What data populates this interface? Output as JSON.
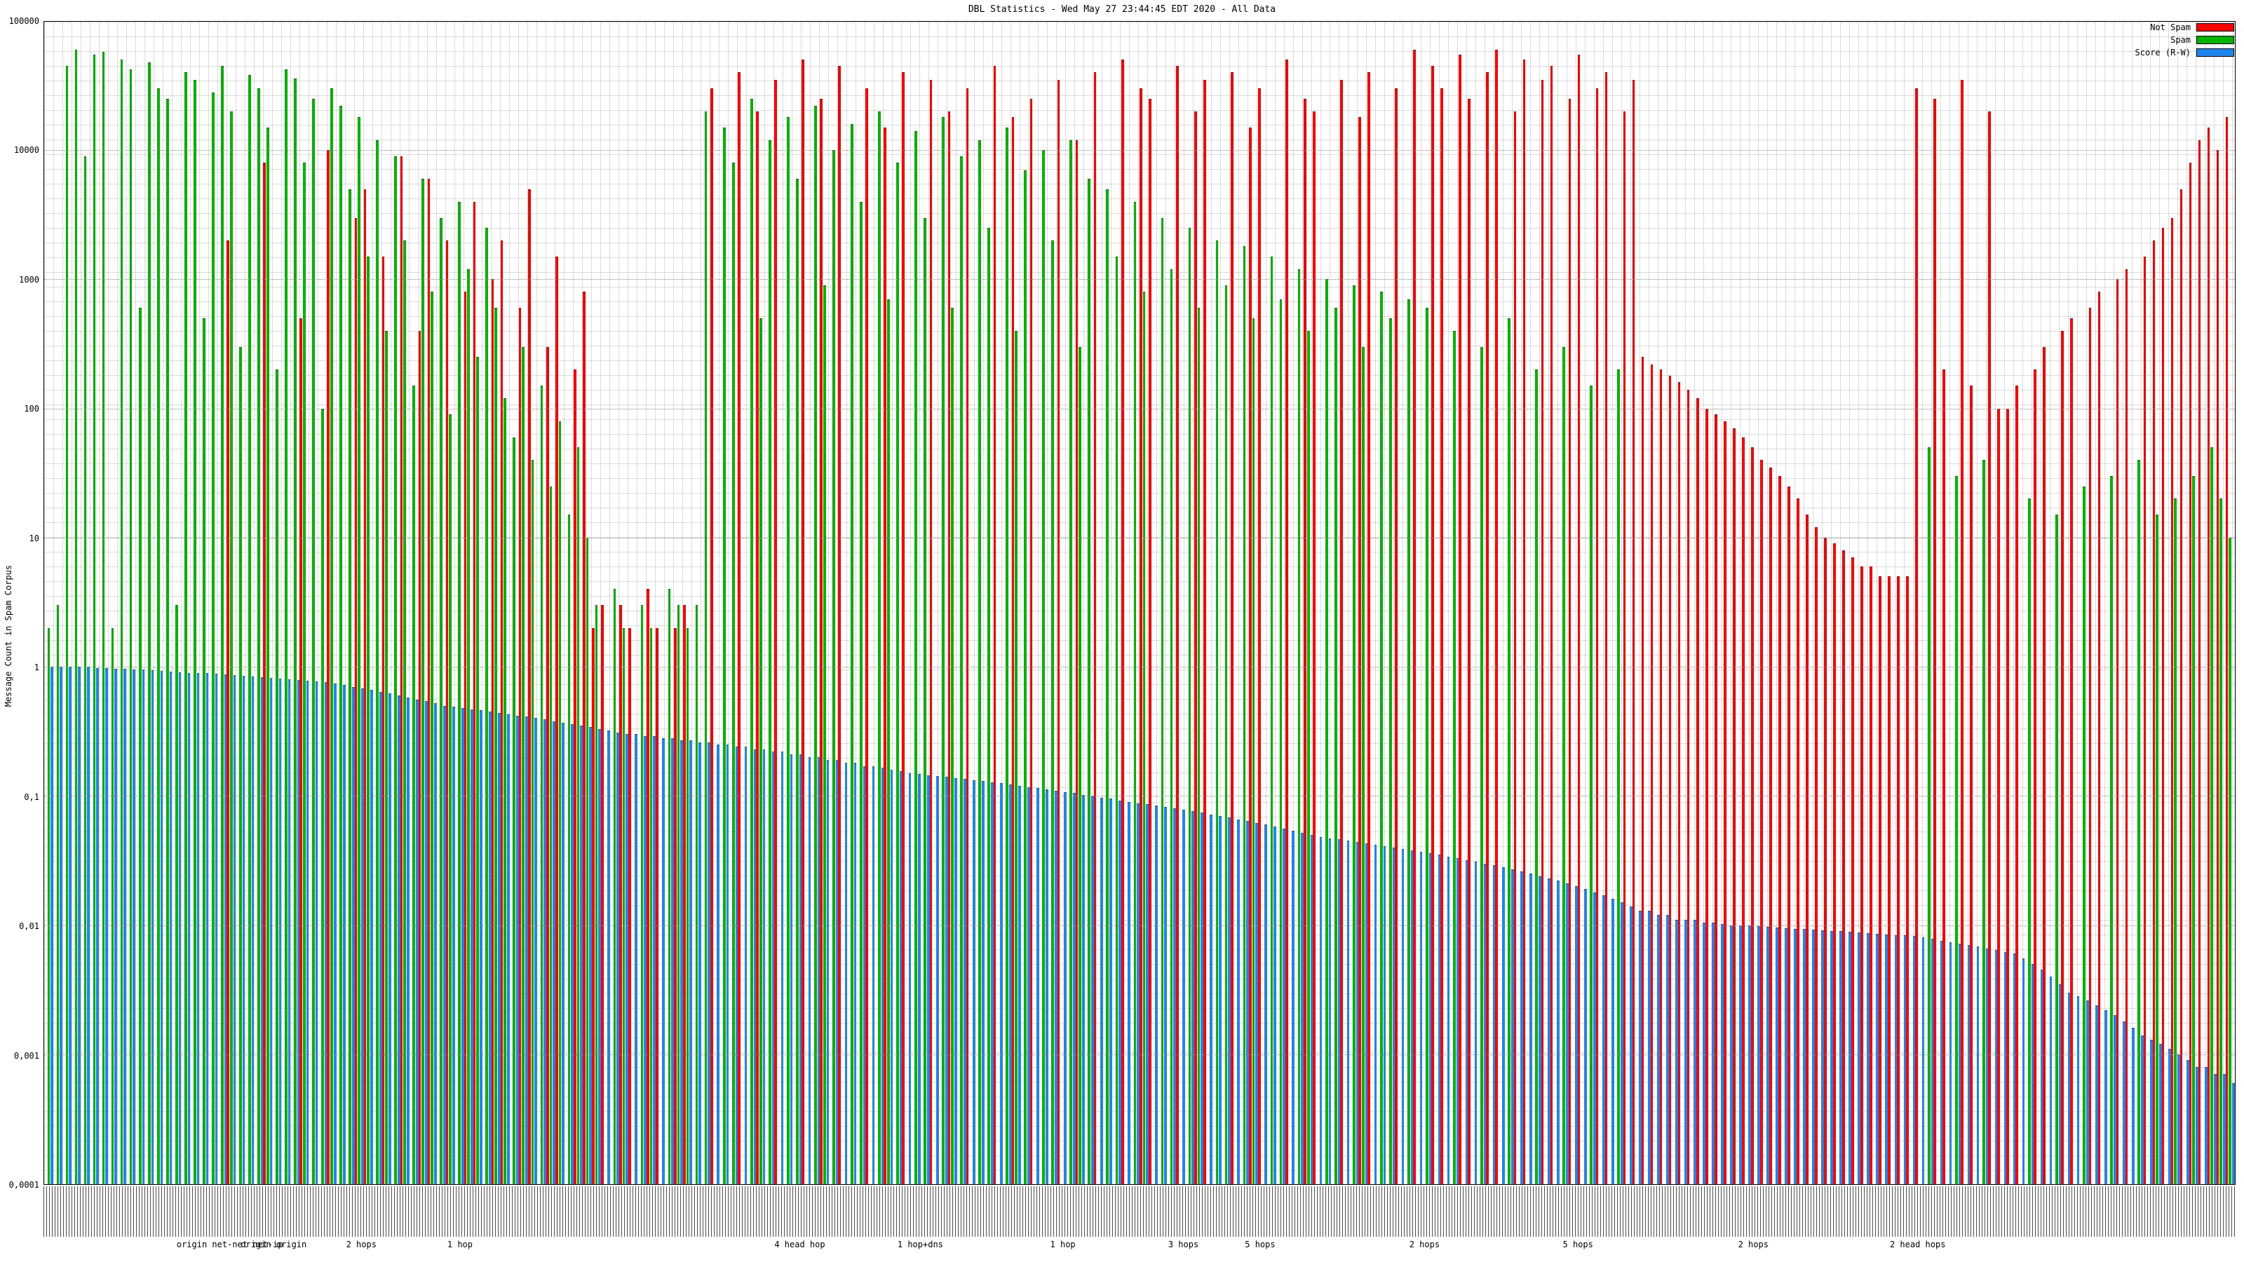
{
  "title": "DBL Statistics - Wed May 27 23:44:45 EDT 2020 - All Data",
  "ylabel": "Message Count in Spam Corpus",
  "chart_data": {
    "type": "bar",
    "y_scale": "log",
    "ylim": [
      0.0001,
      100000
    ],
    "grid": true,
    "legend_position": "top-right",
    "n_categories": 240,
    "x_axis": {
      "labels_illegible": true
    },
    "yticks": [
      {
        "v": 100000,
        "label": "100000"
      },
      {
        "v": 10000,
        "label": "10000"
      },
      {
        "v": 1000,
        "label": "1000"
      },
      {
        "v": 100,
        "label": "100"
      },
      {
        "v": 10,
        "label": "10"
      },
      {
        "v": 1,
        "label": "1"
      },
      {
        "v": 0.1,
        "label": "0,1"
      },
      {
        "v": 0.01,
        "label": "0,01"
      },
      {
        "v": 0.001,
        "label": "0,001"
      },
      {
        "v": 0.0001,
        "label": "0,0001"
      }
    ],
    "x_group_labels": [
      {
        "pos": 0.085,
        "text": "origin  net-net  net-ip"
      },
      {
        "pos": 0.105,
        "text": "origin origin"
      },
      {
        "pos": 0.145,
        "text": "2 hops"
      },
      {
        "pos": 0.19,
        "text": "1 hop"
      },
      {
        "pos": 0.345,
        "text": "4 head hop"
      },
      {
        "pos": 0.4,
        "text": "1 hop+dns"
      },
      {
        "pos": 0.465,
        "text": "1 hop"
      },
      {
        "pos": 0.52,
        "text": "3 hops"
      },
      {
        "pos": 0.555,
        "text": "5 hops"
      },
      {
        "pos": 0.63,
        "text": "2 hops"
      },
      {
        "pos": 0.7,
        "text": "5 hops"
      },
      {
        "pos": 0.78,
        "text": "2 hops"
      },
      {
        "pos": 0.855,
        "text": "2 head hops"
      }
    ],
    "series": [
      {
        "name": "Not Spam",
        "color": "#ff0000",
        "values": [
          0,
          0,
          0,
          0,
          0,
          0,
          0,
          0,
          0,
          0,
          0,
          0,
          0,
          0,
          0,
          0,
          0,
          0,
          0,
          0,
          2000,
          0,
          0,
          0,
          8000,
          0,
          0,
          0,
          500,
          0,
          0,
          10000,
          0,
          0,
          3000,
          5000,
          0,
          1500,
          0,
          9000,
          0,
          400,
          6000,
          0,
          2000,
          0,
          800,
          4000,
          0,
          1000,
          2000,
          0,
          600,
          5000,
          0,
          300,
          1500,
          0,
          200,
          800,
          2,
          3,
          0,
          3,
          2,
          0,
          4,
          2,
          0,
          2,
          3,
          0,
          0,
          30000,
          0,
          0,
          40000,
          0,
          20000,
          0,
          35000,
          0,
          0,
          50000,
          0,
          25000,
          0,
          45000,
          0,
          0,
          30000,
          0,
          15000,
          0,
          40000,
          0,
          0,
          35000,
          0,
          20000,
          0,
          30000,
          0,
          0,
          45000,
          0,
          18000,
          0,
          25000,
          0,
          0,
          35000,
          0,
          12000,
          0,
          40000,
          0,
          0,
          50000,
          0,
          30000,
          25000,
          0,
          0,
          45000,
          0,
          20000,
          35000,
          0,
          0,
          40000,
          0,
          15000,
          30000,
          0,
          0,
          50000,
          0,
          25000,
          20000,
          0,
          0,
          35000,
          0,
          18000,
          40000,
          0,
          0,
          30000,
          0,
          60000,
          0,
          45000,
          30000,
          0,
          55000,
          25000,
          0,
          40000,
          60000,
          0,
          20000,
          50000,
          0,
          35000,
          45000,
          0,
          25000,
          55000,
          0,
          30000,
          40000,
          0,
          20000,
          35000,
          250,
          220,
          200,
          180,
          160,
          140,
          120,
          100,
          90,
          80,
          70,
          60,
          50,
          40,
          35,
          30,
          25,
          20,
          15,
          12,
          10,
          9,
          8,
          7,
          6,
          6,
          5,
          5,
          5,
          5,
          30000,
          0,
          25000,
          200,
          0,
          35000,
          150,
          0,
          20000,
          100,
          100,
          150,
          0,
          200,
          300,
          0,
          400,
          500,
          0,
          600,
          800,
          0,
          1000,
          1200,
          0,
          1500,
          2000,
          2500,
          3000,
          5000,
          8000,
          12000,
          15000,
          10000,
          18000
        ]
      },
      {
        "name": "Spam",
        "color": "#00b400",
        "values": [
          2,
          3,
          45000,
          60000,
          9000,
          55000,
          58000,
          2,
          50000,
          42000,
          600,
          48000,
          30000,
          25000,
          3,
          40000,
          35000,
          500,
          28000,
          45000,
          20000,
          300,
          38000,
          30000,
          15000,
          200,
          42000,
          36000,
          8000,
          25000,
          100,
          30000,
          22000,
          5000,
          18000,
          1500,
          12000,
          400,
          9000,
          2000,
          150,
          6000,
          800,
          3000,
          90,
          4000,
          1200,
          250,
          2500,
          600,
          120,
          60,
          300,
          40,
          150,
          25,
          80,
          15,
          50,
          10,
          3,
          0,
          4,
          2,
          0,
          3,
          2,
          0,
          4,
          3,
          2,
          3,
          20000,
          0,
          15000,
          8000,
          0,
          25000,
          500,
          12000,
          0,
          18000,
          6000,
          0,
          22000,
          900,
          10000,
          0,
          16000,
          4000,
          0,
          20000,
          700,
          8000,
          0,
          14000,
          3000,
          0,
          18000,
          600,
          9000,
          0,
          12000,
          2500,
          0,
          15000,
          400,
          7000,
          0,
          10000,
          2000,
          0,
          12000,
          300,
          6000,
          0,
          5000,
          1500,
          0,
          4000,
          800,
          0,
          3000,
          1200,
          0,
          2500,
          600,
          0,
          2000,
          900,
          0,
          1800,
          500,
          0,
          1500,
          700,
          0,
          1200,
          400,
          0,
          1000,
          600,
          0,
          900,
          300,
          0,
          800,
          500,
          0,
          700,
          0,
          600,
          0,
          0,
          400,
          0,
          0,
          300,
          0,
          0,
          500,
          0,
          0,
          200,
          0,
          0,
          300,
          0,
          0,
          150,
          0,
          0,
          200,
          0,
          0,
          0,
          0,
          0,
          0,
          0,
          0,
          0,
          0,
          0,
          0,
          0,
          0,
          0,
          0,
          0,
          0,
          0,
          0,
          0,
          0,
          0,
          0,
          0,
          0,
          0,
          0,
          0,
          0,
          0,
          0,
          0,
          50,
          0,
          0,
          30,
          0,
          0,
          40,
          0,
          0,
          0,
          0,
          20,
          0,
          0,
          15,
          0,
          0,
          25,
          0,
          0,
          30,
          0,
          0,
          40,
          0,
          15,
          0,
          20,
          0,
          30,
          0,
          50,
          20,
          10
        ]
      },
      {
        "name": "Score (R-W)",
        "color": "#1c86ee",
        "values": [
          1,
          1,
          1,
          1,
          1,
          0.98,
          0.98,
          0.97,
          0.96,
          0.95,
          0.95,
          0.94,
          0.93,
          0.92,
          0.91,
          0.9,
          0.9,
          0.89,
          0.88,
          0.87,
          0.86,
          0.85,
          0.84,
          0.83,
          0.82,
          0.81,
          0.8,
          0.79,
          0.78,
          0.77,
          0.76,
          0.74,
          0.72,
          0.7,
          0.68,
          0.66,
          0.64,
          0.62,
          0.6,
          0.58,
          0.56,
          0.54,
          0.52,
          0.5,
          0.49,
          0.48,
          0.47,
          0.46,
          0.45,
          0.44,
          0.43,
          0.42,
          0.41,
          0.4,
          0.39,
          0.38,
          0.37,
          0.36,
          0.35,
          0.34,
          0.33,
          0.32,
          0.31,
          0.3,
          0.3,
          0.29,
          0.29,
          0.28,
          0.28,
          0.27,
          0.27,
          0.26,
          0.26,
          0.25,
          0.25,
          0.24,
          0.24,
          0.23,
          0.23,
          0.22,
          0.22,
          0.21,
          0.21,
          0.2,
          0.2,
          0.19,
          0.19,
          0.18,
          0.18,
          0.17,
          0.17,
          0.165,
          0.16,
          0.155,
          0.15,
          0.148,
          0.145,
          0.142,
          0.14,
          0.138,
          0.135,
          0.132,
          0.13,
          0.127,
          0.125,
          0.122,
          0.12,
          0.117,
          0.115,
          0.112,
          0.11,
          0.107,
          0.105,
          0.102,
          0.1,
          0.097,
          0.095,
          0.092,
          0.09,
          0.088,
          0.086,
          0.084,
          0.082,
          0.08,
          0.078,
          0.076,
          0.074,
          0.072,
          0.07,
          0.068,
          0.066,
          0.064,
          0.062,
          0.06,
          0.058,
          0.056,
          0.054,
          0.052,
          0.05,
          0.048,
          0.047,
          0.046,
          0.045,
          0.044,
          0.043,
          0.042,
          0.041,
          0.04,
          0.039,
          0.038,
          0.037,
          0.036,
          0.035,
          0.034,
          0.033,
          0.032,
          0.031,
          0.03,
          0.029,
          0.028,
          0.027,
          0.026,
          0.025,
          0.024,
          0.023,
          0.022,
          0.021,
          0.02,
          0.019,
          0.018,
          0.017,
          0.016,
          0.015,
          0.014,
          0.013,
          0.013,
          0.012,
          0.012,
          0.011,
          0.011,
          0.011,
          0.0105,
          0.0105,
          0.0102,
          0.01,
          0.01,
          0.01,
          0.0098,
          0.0097,
          0.0096,
          0.0095,
          0.0094,
          0.0093,
          0.0092,
          0.0091,
          0.009,
          0.009,
          0.0089,
          0.0088,
          0.0087,
          0.0086,
          0.0085,
          0.0084,
          0.0083,
          0.0082,
          0.008,
          0.0078,
          0.0076,
          0.0074,
          0.0072,
          0.007,
          0.0068,
          0.0066,
          0.0064,
          0.0062,
          0.006,
          0.0055,
          0.005,
          0.0045,
          0.004,
          0.0035,
          0.003,
          0.0028,
          0.0026,
          0.0024,
          0.0022,
          0.002,
          0.0018,
          0.0016,
          0.0014,
          0.0013,
          0.0012,
          0.0011,
          0.001,
          0.0009,
          0.0008,
          0.0008,
          0.0007,
          0.0007,
          0.0006
        ]
      }
    ]
  }
}
